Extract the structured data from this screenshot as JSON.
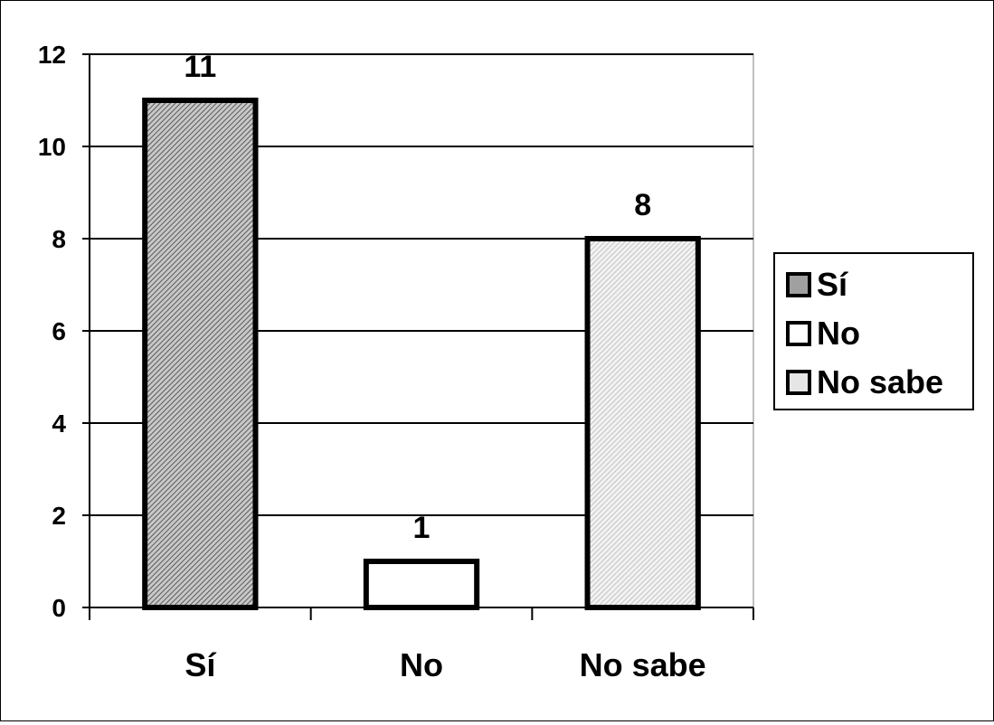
{
  "chart_data": {
    "type": "bar",
    "categories": [
      "Sí",
      "No",
      "No sabe"
    ],
    "values": [
      11,
      1,
      8
    ],
    "data_labels": [
      "11",
      "1",
      "8"
    ],
    "title": "",
    "xlabel": "",
    "ylabel": "",
    "ylim": [
      0,
      12
    ],
    "yticks": [
      0,
      2,
      4,
      6,
      8,
      10,
      12
    ],
    "ytick_labels": [
      "0",
      "2",
      "4",
      "6",
      "8",
      "10",
      "12"
    ],
    "grid": true,
    "legend_position": "right",
    "legend": [
      "Sí",
      "No",
      "No sabe"
    ],
    "colors": [
      "#a0a0a0",
      "#ffffff",
      "#dcdcdc"
    ]
  }
}
